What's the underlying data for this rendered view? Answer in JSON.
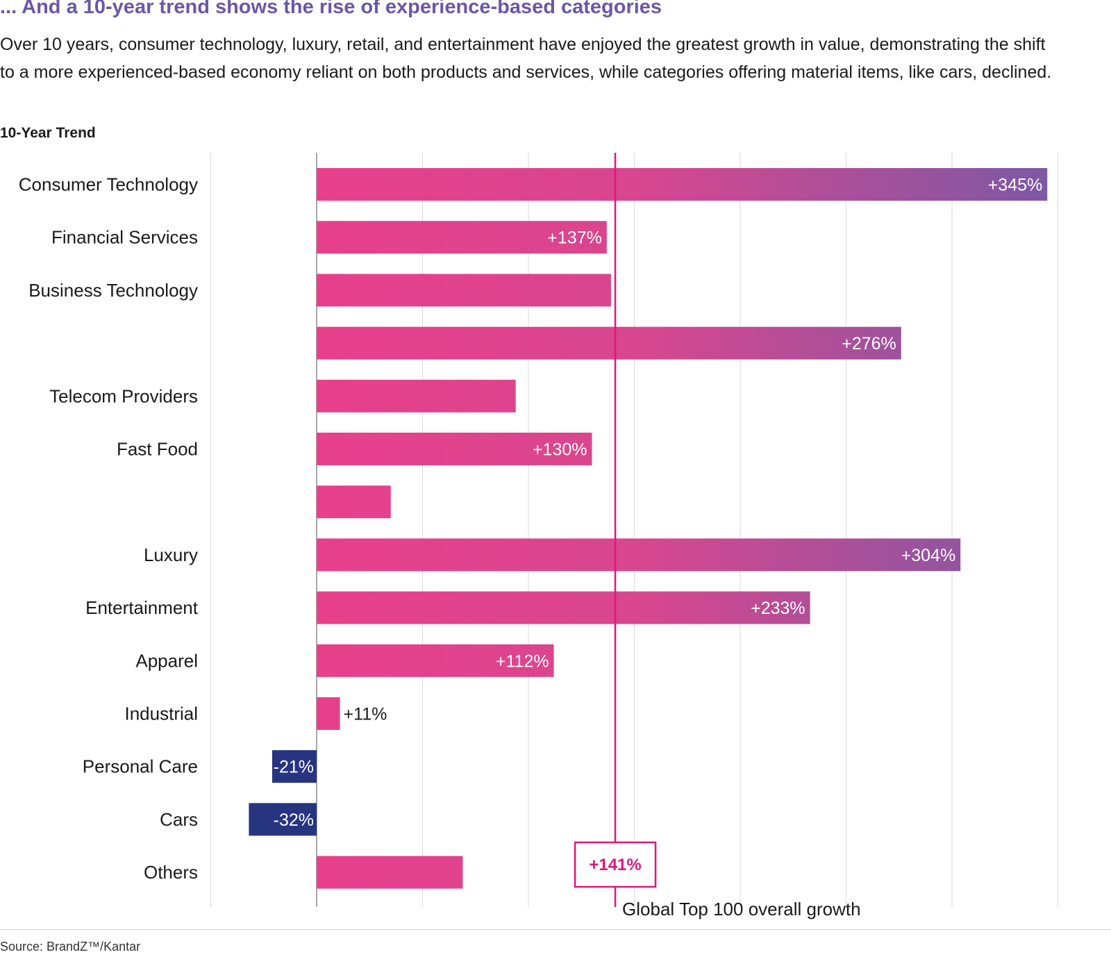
{
  "header": {
    "title": "... And a 10-year trend shows the rise of experience-based categories",
    "subtitle": "Over 10 years, consumer technology, luxury, retail, and entertainment have enjoyed the greatest growth in value, demonstrating the shift to a more experienced-based economy reliant on both products and services, while categories offering material items, like cars, declined."
  },
  "chart_label": "10-Year Trend",
  "chart_data": {
    "type": "bar",
    "orientation": "horizontal",
    "title": "10-Year Trend",
    "xlabel": "",
    "ylabel": "",
    "xlim": [
      -92,
      383
    ],
    "grid": true,
    "categories": [
      "Consumer Technology",
      "Financial Services",
      "Business Technology",
      "",
      "Telecom Providers",
      "Fast Food",
      "",
      "Luxury",
      "Entertainment",
      "Apparel",
      "Industrial",
      "Personal Care",
      "Cars",
      "Others"
    ],
    "values": [
      345,
      137,
      139,
      276,
      94,
      130,
      35,
      304,
      233,
      112,
      11,
      -21,
      -32,
      69
    ],
    "data_labels": [
      "+345%",
      "+137%",
      "",
      "+276%",
      "",
      "+130%",
      "",
      "+304%",
      "+233%",
      "+112%",
      "+11%",
      "-21%",
      "-32%",
      ""
    ],
    "reference_line": {
      "value": 141,
      "label": "+141%",
      "caption": "Global Top 100 overall growth"
    },
    "colors": {
      "gradient_start": "#e8408b",
      "gradient_end": "#7e58a4",
      "negative": "#27347f",
      "reference": "#e0157d"
    }
  },
  "source": "Source: BrandZ™/Kantar"
}
